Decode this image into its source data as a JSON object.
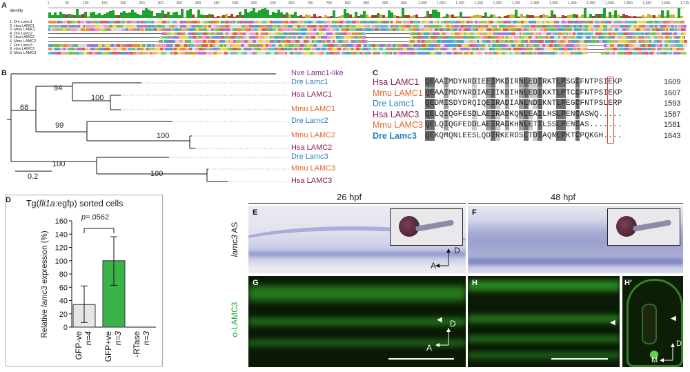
{
  "panelA": {
    "label": "A",
    "identity_label": "Identity",
    "ruler_ticks": [
      "1",
      "50",
      "100",
      "150",
      "200",
      "250",
      "300",
      "350",
      "400",
      "450",
      "500",
      "550",
      "600",
      "650",
      "700",
      "750",
      "800",
      "850",
      "900",
      "950",
      "1,000",
      "1,050",
      "1,100",
      "1,150",
      "1,200",
      "1,250",
      "1,300",
      "1,350",
      "1,400",
      "1,450",
      "1,500",
      "1,550",
      "1,600",
      "1,650",
      "1,719"
    ],
    "sequences": [
      "1. Dre Lamc1",
      "2. Hsa LAMC1",
      "3. Mmu LAMC1",
      "4. Dre Lamc2",
      "5. Hsa LAMC2",
      "6. Mmu LAMC2",
      "7. Dre Lamc3",
      "8. Hsa LAMC3",
      "9. Mmu LAMC3"
    ]
  },
  "panelB": {
    "label": "B",
    "taxa": [
      {
        "name": "Nve Lamc1-like",
        "color": "#7a3b8c"
      },
      {
        "name": "Dre Lamc1",
        "color": "#2a7fc1"
      },
      {
        "name": "Hsa LAMC1",
        "color": "#8b1c4f"
      },
      {
        "name": "Mmu LAMC1",
        "color": "#e0662a"
      },
      {
        "name": "Dre Lamc2",
        "color": "#2a7fc1"
      },
      {
        "name": "Mmu LAMC2",
        "color": "#e0662a"
      },
      {
        "name": "Hsa LAMC2",
        "color": "#8b1c4f"
      },
      {
        "name": "Dre Lamc3",
        "color": "#2a7fc1"
      },
      {
        "name": "Mmu LAMC3",
        "color": "#e0662a"
      },
      {
        "name": "Hsa LAMC3",
        "color": "#8b1c4f"
      }
    ],
    "bootstrap": [
      "94",
      "100",
      "68",
      "99",
      "100",
      "100",
      "100"
    ],
    "scale": "0.2"
  },
  "panelC": {
    "label": "C",
    "rows": [
      {
        "name": "Hsa LAMC1",
        "color": "#8b1c4f",
        "bold": false,
        "seq": "QEAAIMDYNRDIEEIMKDIRNLEDIRKTLPSGCFNTPSIEKP",
        "num": "1609"
      },
      {
        "name": "Mmu LAMC1",
        "color": "#e0662a",
        "bold": false,
        "seq": "QEAAIMDYNRDIAEIIKDIHNLEDIKKTLPTCCFNTPSIEKP",
        "num": "1607"
      },
      {
        "name": "Dre Lamc1",
        "color": "#2a7fc1",
        "bold": false,
        "seq": "QEDMISDYDRQIQEIRADIANLNDIKNTLPEGCFNTPSLERP",
        "num": "1593"
      },
      {
        "name": "Hsa LAMC3",
        "color": "#8b1c4f",
        "bold": false,
        "seq": "QELQIQGFESDLAEIRADKQNLEAILHSLPENCASWQ.....",
        "num": "1587"
      },
      {
        "name": "Mmu LAMC3",
        "color": "#e0662a",
        "bold": false,
        "seq": "QELQIQGFEDDLAEIRADKHNLETILSSLPENCAS.......",
        "num": "1581"
      },
      {
        "name": "Dre Lamc3",
        "color": "#2a7fc1",
        "bold": true,
        "seq": "QEKQMQNLEESLQDIRKERDSLTDIAQNLPKTCPQKGH....",
        "num": "1643"
      }
    ]
  },
  "panelD": {
    "label": "D",
    "title_prefix": "Tg(",
    "title_italic": "fli1a",
    "title_suffix": ":egfp) sorted cells",
    "ylabel_prefix": "Relative ",
    "ylabel_italic": "lamc3",
    "ylabel_suffix": " expression (%)",
    "p_prefix": "p",
    "p_value": "=.0562",
    "yticks": [
      "0",
      "20",
      "40",
      "60",
      "80",
      "100",
      "120",
      "140",
      "160"
    ]
  },
  "chart_data": {
    "type": "bar",
    "categories": [
      "GFP-ve",
      "GFP+ve",
      "-RTase"
    ],
    "values": [
      34,
      100,
      0
    ],
    "error": [
      [
        7,
        62
      ],
      [
        63,
        136
      ],
      [
        0,
        0
      ]
    ],
    "n_labels": [
      "n=4",
      "n=3",
      "n=3"
    ],
    "colors": [
      "#e6e6e6",
      "#3cb34a",
      "#ffffff"
    ],
    "ylabel": "Relative lamc3 expression (%)",
    "title": "Tg(fli1a:egfp) sorted cells",
    "ylim": [
      0,
      160
    ],
    "annotation": "p=.0562"
  },
  "panelEF": {
    "stage_26": "26 hpf",
    "stage_48": "48 hpf",
    "row1_label_italic": "lamc3",
    "row1_label_suffix": " AS",
    "row2_label": "α-LAMC3",
    "labels": [
      "E",
      "F",
      "G",
      "H",
      "H′"
    ],
    "axis_A": "A",
    "axis_D": "D",
    "axis_M": "M"
  }
}
